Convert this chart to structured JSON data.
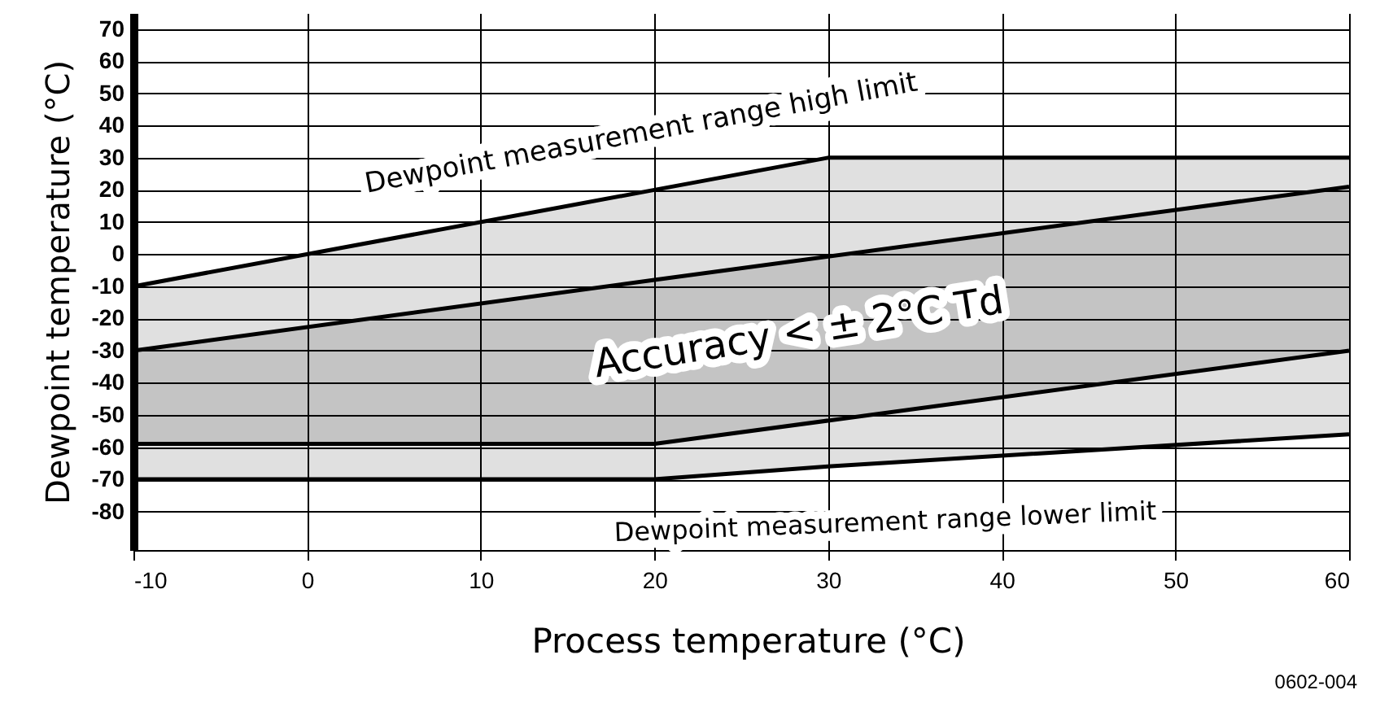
{
  "chart_data": {
    "type": "line",
    "xlabel": "Process temperature (°C)",
    "ylabel": "Dewpoint temperature (°C)",
    "xlim": [
      -10,
      60
    ],
    "ylim": [
      -92,
      75
    ],
    "xticks": [
      -10,
      0,
      10,
      20,
      30,
      40,
      50,
      60
    ],
    "yticks": [
      -80,
      -70,
      -60,
      -50,
      -40,
      -30,
      -20,
      -10,
      0,
      10,
      20,
      30,
      40,
      50,
      60,
      70
    ],
    "grid": true,
    "legend": false,
    "marker": "none",
    "line_style": "solid",
    "series": [
      {
        "color": "#000000",
        "x": [
          -10,
          20,
          30,
          60
        ],
        "values": [
          -10,
          20,
          30,
          30
        ],
        "lower": [
          -70,
          -70,
          -66,
          -56
        ],
        "upper": [
          -10,
          20,
          30,
          30
        ]
      },
      {
        "color": "#000000",
        "x": [
          -10,
          20,
          30,
          60
        ],
        "values": [
          -70,
          -70,
          -66,
          -56
        ]
      },
      {
        "color": "#000000",
        "x": [
          -10,
          20,
          60
        ],
        "values": [
          -30,
          -8,
          21
        ],
        "lower": [
          -59,
          -59,
          -30
        ],
        "upper": [
          -30,
          -8,
          21
        ]
      },
      {
        "color": "#000000",
        "x": [
          -10,
          20,
          60
        ],
        "values": [
          -59,
          -59,
          -30
        ]
      }
    ],
    "annotations": [
      "Dewpoint measurement range high limit",
      "Accuracy < ± 2°C Td",
      "Dewpoint measurement range lower limit",
      "0602-004"
    ]
  }
}
